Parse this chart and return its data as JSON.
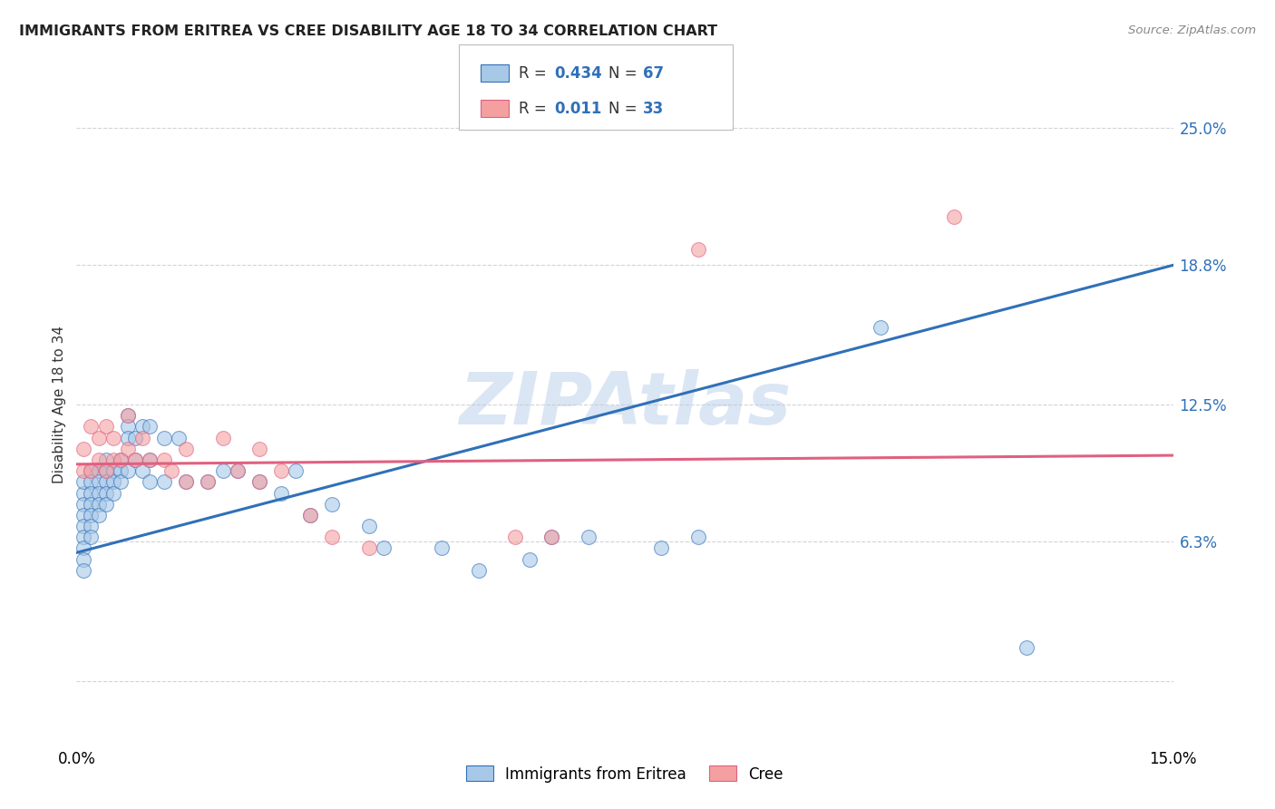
{
  "title": "IMMIGRANTS FROM ERITREA VS CREE DISABILITY AGE 18 TO 34 CORRELATION CHART",
  "source": "Source: ZipAtlas.com",
  "ylabel": "Disability Age 18 to 34",
  "xlim": [
    0.0,
    0.15
  ],
  "ylim": [
    -0.025,
    0.275
  ],
  "ytick_positions": [
    0.063,
    0.125,
    0.188,
    0.25
  ],
  "ytick_labels": [
    "6.3%",
    "12.5%",
    "18.8%",
    "25.0%"
  ],
  "watermark": "ZIPAtlas",
  "series1_color": "#a8c8e8",
  "series2_color": "#f4a0a0",
  "line1_color": "#3070b8",
  "line2_color": "#e06080",
  "background_color": "#ffffff",
  "grid_color": "#c8c8d0",
  "blue_scatter_x": [
    0.001,
    0.001,
    0.001,
    0.001,
    0.001,
    0.001,
    0.001,
    0.001,
    0.001,
    0.002,
    0.002,
    0.002,
    0.002,
    0.002,
    0.002,
    0.002,
    0.003,
    0.003,
    0.003,
    0.003,
    0.003,
    0.004,
    0.004,
    0.004,
    0.004,
    0.004,
    0.005,
    0.005,
    0.005,
    0.006,
    0.006,
    0.006,
    0.007,
    0.007,
    0.007,
    0.007,
    0.008,
    0.008,
    0.009,
    0.009,
    0.01,
    0.01,
    0.01,
    0.012,
    0.012,
    0.014,
    0.015,
    0.018,
    0.02,
    0.022,
    0.025,
    0.028,
    0.03,
    0.032,
    0.035,
    0.04,
    0.042,
    0.05,
    0.055,
    0.062,
    0.065,
    0.07,
    0.08,
    0.085,
    0.11,
    0.13
  ],
  "blue_scatter_y": [
    0.085,
    0.08,
    0.09,
    0.075,
    0.07,
    0.065,
    0.06,
    0.055,
    0.05,
    0.095,
    0.09,
    0.085,
    0.08,
    0.075,
    0.07,
    0.065,
    0.095,
    0.09,
    0.085,
    0.08,
    0.075,
    0.1,
    0.095,
    0.09,
    0.085,
    0.08,
    0.095,
    0.09,
    0.085,
    0.1,
    0.095,
    0.09,
    0.12,
    0.115,
    0.11,
    0.095,
    0.11,
    0.1,
    0.115,
    0.095,
    0.115,
    0.1,
    0.09,
    0.11,
    0.09,
    0.11,
    0.09,
    0.09,
    0.095,
    0.095,
    0.09,
    0.085,
    0.095,
    0.075,
    0.08,
    0.07,
    0.06,
    0.06,
    0.05,
    0.055,
    0.065,
    0.065,
    0.06,
    0.065,
    0.16,
    0.015
  ],
  "pink_scatter_x": [
    0.001,
    0.001,
    0.002,
    0.002,
    0.003,
    0.003,
    0.004,
    0.004,
    0.005,
    0.005,
    0.006,
    0.007,
    0.007,
    0.008,
    0.009,
    0.01,
    0.012,
    0.013,
    0.015,
    0.015,
    0.018,
    0.02,
    0.022,
    0.025,
    0.025,
    0.028,
    0.032,
    0.035,
    0.04,
    0.06,
    0.065,
    0.085,
    0.12
  ],
  "pink_scatter_y": [
    0.105,
    0.095,
    0.115,
    0.095,
    0.11,
    0.1,
    0.115,
    0.095,
    0.11,
    0.1,
    0.1,
    0.12,
    0.105,
    0.1,
    0.11,
    0.1,
    0.1,
    0.095,
    0.105,
    0.09,
    0.09,
    0.11,
    0.095,
    0.105,
    0.09,
    0.095,
    0.075,
    0.065,
    0.06,
    0.065,
    0.065,
    0.195,
    0.21
  ],
  "line1_x": [
    0.0,
    0.15
  ],
  "line1_y": [
    0.058,
    0.188
  ],
  "line2_x": [
    0.0,
    0.15
  ],
  "line2_y": [
    0.098,
    0.102
  ]
}
